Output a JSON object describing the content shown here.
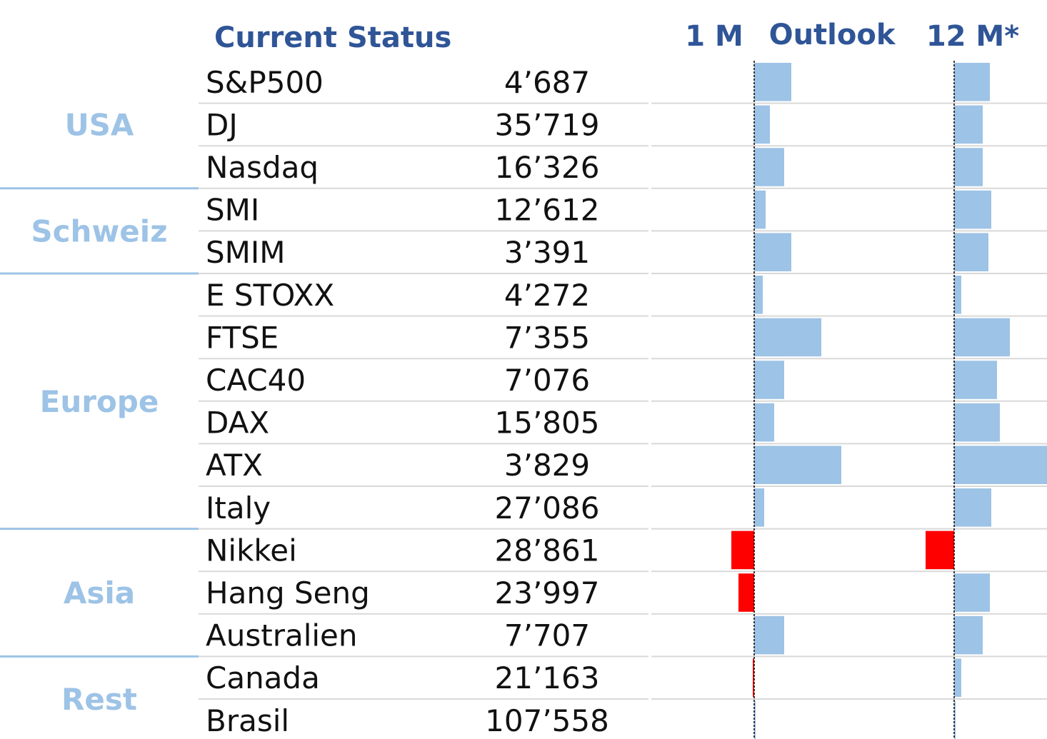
{
  "chart_data": {
    "type": "bar",
    "title": "Current Status",
    "header_outlook": "Outlook",
    "series": [
      {
        "name": "1 M",
        "values": [
          2.6,
          1.1,
          2.1,
          0.8,
          2.6,
          0.6,
          4.7,
          2.1,
          1.4,
          6.1,
          0.7,
          -1.6,
          -1.1,
          2.1,
          -0.1,
          0.1
        ]
      },
      {
        "name": "12 M*",
        "values": [
          2.5,
          2.0,
          2.0,
          2.6,
          2.4,
          0.5,
          3.9,
          3.0,
          3.2,
          6.6,
          2.6,
          -2.0,
          2.5,
          2.0,
          0.5,
          0.1
        ]
      }
    ],
    "rows": [
      {
        "region": "USA",
        "name": "S&P500",
        "value": "4’687"
      },
      {
        "region": "USA",
        "name": "DJ",
        "value": "35’719"
      },
      {
        "region": "USA",
        "name": "Nasdaq",
        "value": "16’326"
      },
      {
        "region": "Schweiz",
        "name": "SMI",
        "value": "12’612"
      },
      {
        "region": "Schweiz",
        "name": "SMIM",
        "value": "3’391"
      },
      {
        "region": "Europe",
        "name": "E STOXX",
        "value": "4’272"
      },
      {
        "region": "Europe",
        "name": "FTSE",
        "value": "7’355"
      },
      {
        "region": "Europe",
        "name": "CAC40",
        "value": "7’076"
      },
      {
        "region": "Europe",
        "name": "DAX",
        "value": "15’805"
      },
      {
        "region": "Europe",
        "name": "ATX",
        "value": "3’829"
      },
      {
        "region": "Europe",
        "name": "Italy",
        "value": "27’086"
      },
      {
        "region": "Asia",
        "name": "Nikkei",
        "value": "28’861"
      },
      {
        "region": "Asia",
        "name": "Hang Seng",
        "value": "23’997"
      },
      {
        "region": "Asia",
        "name": "Australien",
        "value": "7’707"
      },
      {
        "region": "Rest",
        "name": "Canada",
        "value": "21’163"
      },
      {
        "region": "Rest",
        "name": "Brasil",
        "value": "107’558"
      }
    ],
    "regions": [
      "USA",
      "Schweiz",
      "Europe",
      "Asia",
      "Rest"
    ],
    "colors": {
      "positive": "#9DC3E6",
      "negative": "#FF0000",
      "header": "#2F5597",
      "region": "#9DC3E6",
      "divider": "#9DC3E6",
      "row_line": "#D9D9D9"
    },
    "grid": false,
    "legend": "none"
  }
}
